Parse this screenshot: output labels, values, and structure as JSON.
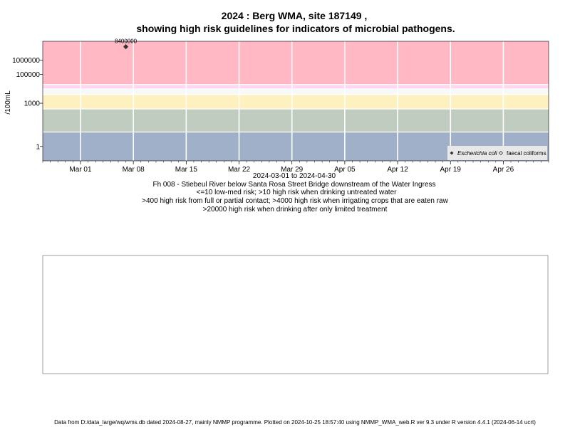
{
  "header": {
    "title_line1": "2024 : Berg WMA, site 187149 ,",
    "title_line2": "showing high risk guidelines for indicators of microbial pathogens."
  },
  "chart_data": {
    "type": "scatter",
    "title": "2024 : Berg WMA, site 187149 , showing high risk guidelines for indicators of microbial pathogens.",
    "ylabel": "/100mL",
    "yscale": "log",
    "ylim": [
      0.1,
      20000000
    ],
    "xlim": [
      "2024-02-25",
      "2024-05-02"
    ],
    "x_ticks": [
      {
        "date": "2024-03-01",
        "label": "Mar 01"
      },
      {
        "date": "2024-03-08",
        "label": "Mar 08"
      },
      {
        "date": "2024-03-15",
        "label": "Mar 15"
      },
      {
        "date": "2024-03-22",
        "label": "Mar 22"
      },
      {
        "date": "2024-03-29",
        "label": "Mar 29"
      },
      {
        "date": "2024-04-05",
        "label": "Apr 05"
      },
      {
        "date": "2024-04-12",
        "label": "Apr 12"
      },
      {
        "date": "2024-04-19",
        "label": "Apr 19"
      },
      {
        "date": "2024-04-26",
        "label": "Apr 26"
      }
    ],
    "y_ticks": [
      {
        "value": 1,
        "label": "1"
      },
      {
        "value": 1000,
        "label": "1000"
      },
      {
        "value": 100000,
        "label": "100000"
      },
      {
        "value": 1000000,
        "label": "1000000"
      }
    ],
    "guideline_bands": [
      {
        "from": 0.1,
        "to": 10,
        "color": "#a0b0c8"
      },
      {
        "from": 10,
        "to": 400,
        "color": "#c0ccc0"
      },
      {
        "from": 400,
        "to": 4000,
        "color": "#fff0c0"
      },
      {
        "from": 4000,
        "to": 10000,
        "color": "#f8f8f8"
      },
      {
        "from": 10000,
        "to": 20000,
        "color": "#ffd8f0"
      },
      {
        "from": 20000,
        "to": 20000000,
        "color": "#ffb8c4"
      }
    ],
    "band_edge_color": "#ffffff",
    "series": [
      {
        "name": "Escherichia coli",
        "marker": "filled-diamond",
        "color": "#333333",
        "points": [
          {
            "x": "2024-03-07",
            "y": 8400000,
            "label": "8400000"
          }
        ]
      },
      {
        "name": "faecal coliforms",
        "marker": "open-diamond",
        "color": "#333333",
        "points": []
      }
    ],
    "legend": {
      "position": "bottom-right",
      "background": "#e8e8e8"
    },
    "grid": true
  },
  "captions": {
    "date_range": "2024-03-01 to 2024-04-30",
    "site": "Fh 008 - Stiebeul River below Santa Rosa Street Bridge downstream of the Water Ingress",
    "rule1": "<=10 low-med risk; >10 high risk when drinking untreated water",
    "rule2": ">400 high risk from full or partial contact; >4000 high risk when irrigating crops that are eaten raw",
    "rule3": ">20000 high risk when drinking after only limited treatment"
  },
  "footer": {
    "text": "Data from D:/data_large/wq/wms.db dated 2024-08-27, mainly NMMP programme. Plotted on 2024-10-25 18:57:40 using NMMP_WMA_web.R ver 9.3 under R version 4.4.1 (2024-06-14 ucrt)"
  }
}
